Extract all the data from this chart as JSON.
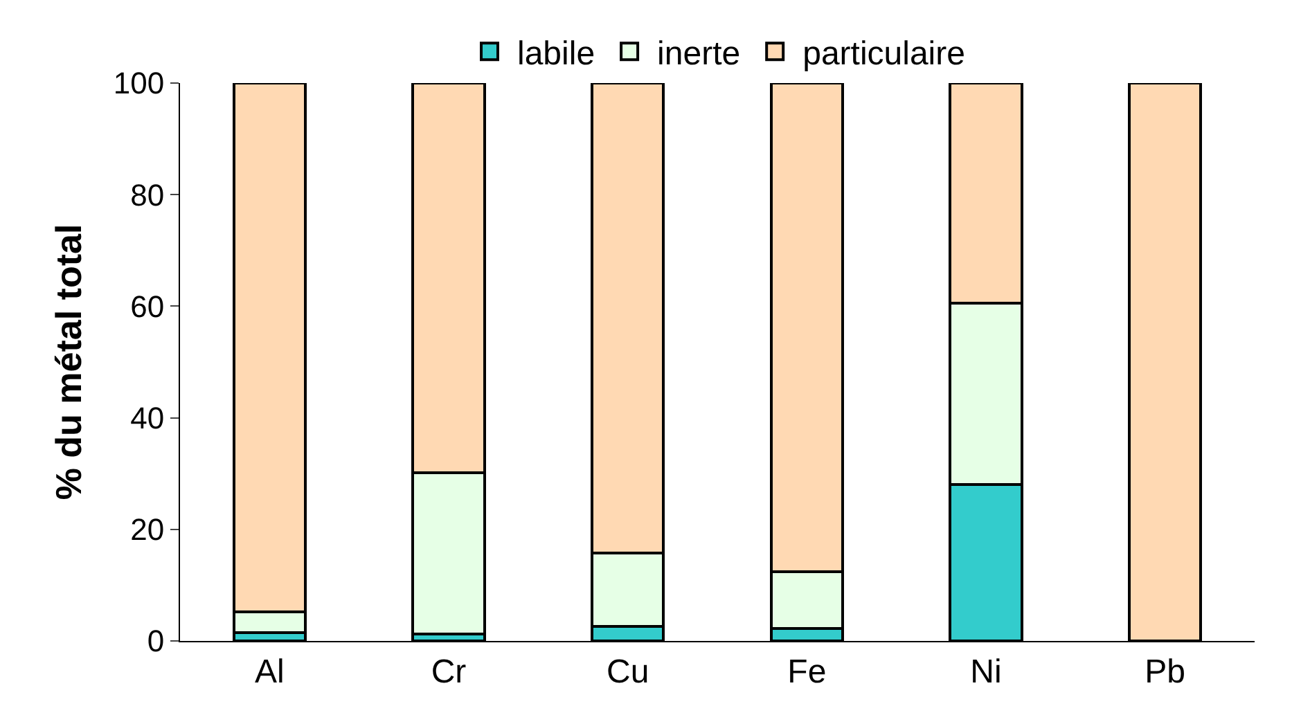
{
  "chart_data": {
    "type": "bar",
    "stacked": true,
    "ylabel": "% du métal total",
    "categories": [
      "Al",
      "Cr",
      "Cu",
      "Fe",
      "Ni",
      "Pb"
    ],
    "series": [
      {
        "name": "labile",
        "color": "#33cccc",
        "values": [
          1.5,
          1.2,
          2.6,
          2.2,
          28,
          0
        ]
      },
      {
        "name": "inerte",
        "color": "#e6ffe6",
        "values": [
          3.7,
          29,
          13.2,
          10.2,
          32.6,
          0
        ]
      },
      {
        "name": "particulaire",
        "color": "#ffd9b3",
        "values": [
          94.8,
          69.8,
          84.2,
          87.6,
          39.4,
          100
        ]
      }
    ],
    "ylim": [
      0,
      100
    ],
    "yticks": [
      0,
      20,
      40,
      60,
      80,
      100
    ],
    "legend": "top"
  }
}
